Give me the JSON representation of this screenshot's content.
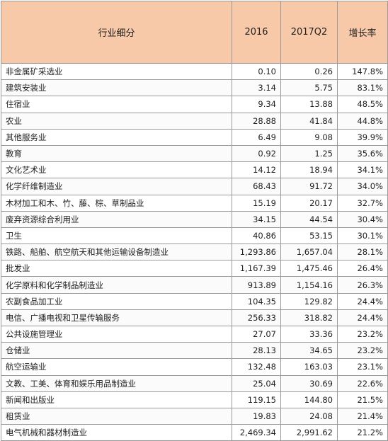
{
  "table": {
    "headers": [
      "行业细分",
      "2016",
      "2017Q2",
      "增长率"
    ],
    "rows": [
      [
        "非金属矿采选业",
        "0.10",
        "0.26",
        "147.8%"
      ],
      [
        "建筑安装业",
        "3.14",
        "5.75",
        "83.1%"
      ],
      [
        "住宿业",
        "9.34",
        "13.88",
        "48.5%"
      ],
      [
        "农业",
        "28.88",
        "41.84",
        "44.8%"
      ],
      [
        "其他服务业",
        "6.49",
        "9.08",
        "39.9%"
      ],
      [
        "教育",
        "0.92",
        "1.25",
        "35.6%"
      ],
      [
        "文化艺术业",
        "14.12",
        "18.94",
        "34.1%"
      ],
      [
        "化学纤维制造业",
        "68.43",
        "91.72",
        "34.0%"
      ],
      [
        "木材加工和木、竹、藤、棕、草制品业",
        "15.19",
        "20.17",
        "32.7%"
      ],
      [
        "废弃资源综合利用业",
        "34.15",
        "44.54",
        "30.4%"
      ],
      [
        "卫生",
        "40.86",
        "53.15",
        "30.1%"
      ],
      [
        "铁路、船舶、航空航天和其他运输设备制造业",
        "1,293.86",
        "1,657.04",
        "28.1%"
      ],
      [
        "批发业",
        "1,167.39",
        "1,475.46",
        "26.4%"
      ],
      [
        "化学原料和化学制品制造业",
        "913.89",
        "1,154.16",
        "26.3%"
      ],
      [
        "农副食品加工业",
        "104.35",
        "129.82",
        "24.4%"
      ],
      [
        "电信、广播电视和卫星传输服务",
        "256.33",
        "318.82",
        "24.4%"
      ],
      [
        "公共设施管理业",
        "27.07",
        "33.36",
        "23.2%"
      ],
      [
        "仓储业",
        "28.13",
        "34.65",
        "23.2%"
      ],
      [
        "航空运输业",
        "132.48",
        "163.03",
        "23.1%"
      ],
      [
        "文教、工美、体育和娱乐用品制造业",
        "25.04",
        "30.69",
        "22.6%"
      ],
      [
        "新闻和出版业",
        "119.15",
        "144.80",
        "21.5%"
      ],
      [
        "租赁业",
        "19.83",
        "24.08",
        "21.4%"
      ],
      [
        "电气机械和器材制造业",
        "2,469.34",
        "2,991.62",
        "21.2%"
      ]
    ]
  },
  "colors": {
    "header_bg": "#f7c9a8",
    "border": "#9a9a9a"
  }
}
